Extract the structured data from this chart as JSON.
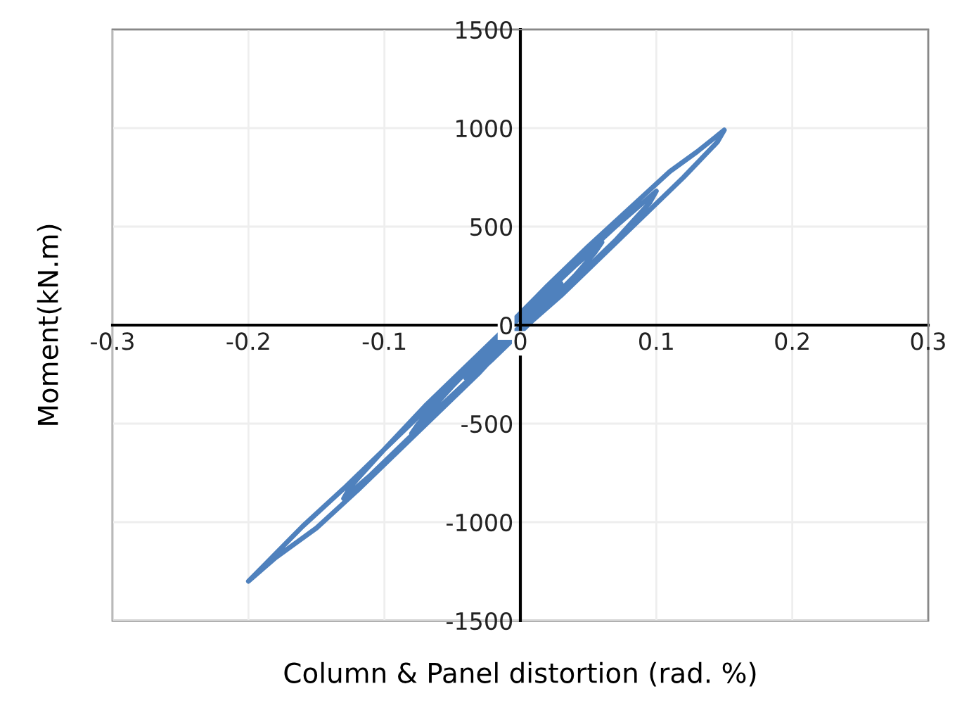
{
  "chart_data": {
    "type": "line",
    "xlabel": "Column & Panel distortion (rad. %)",
    "ylabel": "Moment(kN.m)",
    "xlim": [
      -0.3,
      0.3
    ],
    "xticks": [
      -0.3,
      -0.2,
      -0.1,
      0,
      0.1,
      0.2,
      0.3
    ],
    "ylim": [
      -1500,
      1500
    ],
    "yticks": [
      -1500,
      -1000,
      -500,
      0,
      500,
      1000,
      1500
    ],
    "grid": true,
    "marker": "none",
    "line_style": "solid",
    "series": [
      {
        "color": "#4f81bd",
        "x": [
          0,
          0.01,
          0.02,
          0.03,
          0.025,
          0.01,
          0,
          -0.01,
          -0.02,
          -0.03,
          -0.04,
          -0.035,
          -0.02,
          -0.005,
          0,
          0.02,
          0.04,
          0.06,
          0.055,
          0.04,
          0.02,
          0,
          -0.02,
          -0.04,
          -0.06,
          -0.08,
          -0.075,
          -0.05,
          -0.03,
          -0.01,
          0.01,
          0.04,
          0.07,
          0.1,
          0.095,
          0.07,
          0.04,
          0.01,
          -0.02,
          -0.05,
          -0.08,
          -0.11,
          -0.13,
          -0.125,
          -0.1,
          -0.07,
          -0.04,
          -0.01,
          0.02,
          0.05,
          0.08,
          0.11,
          0.13,
          0.15,
          0.145,
          0.12,
          0.09,
          0.06,
          0.03,
          -0.01,
          -0.03,
          -0.06,
          -0.09,
          -0.12,
          -0.15,
          -0.18,
          -0.2,
          -0.19,
          -0.16,
          -0.13,
          -0.1,
          -0.07,
          -0.04,
          -0.01,
          0
        ],
        "values": [
          0,
          90,
          150,
          210,
          170,
          60,
          -10,
          -60,
          -130,
          -200,
          -270,
          -220,
          -110,
          10,
          40,
          170,
          300,
          420,
          370,
          250,
          110,
          -30,
          -150,
          -290,
          -420,
          -550,
          -500,
          -310,
          -170,
          -30,
          110,
          310,
          500,
          680,
          620,
          430,
          230,
          30,
          -170,
          -360,
          -560,
          -760,
          -880,
          -820,
          -630,
          -410,
          -210,
          -10,
          200,
          400,
          590,
          780,
          880,
          990,
          930,
          750,
          550,
          350,
          150,
          -90,
          -240,
          -440,
          -640,
          -840,
          -1030,
          -1180,
          -1300,
          -1230,
          -1020,
          -830,
          -630,
          -430,
          -230,
          -30,
          40
        ]
      }
    ]
  }
}
